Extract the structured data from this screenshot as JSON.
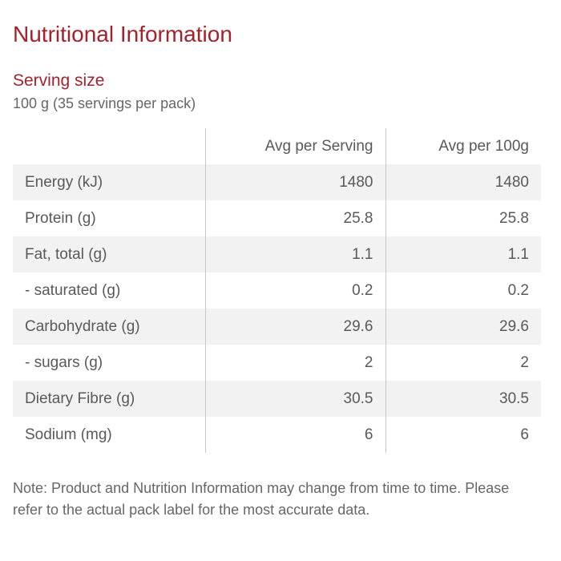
{
  "title": "Nutritional Information",
  "serving": {
    "heading": "Serving size",
    "value": "100 g (35 servings per pack)"
  },
  "table": {
    "headers": [
      "",
      "Avg per Serving",
      "Avg per 100g"
    ],
    "rows": [
      {
        "name": "Energy (kJ)",
        "per_serving": "1480",
        "per_100g": "1480"
      },
      {
        "name": "Protein (g)",
        "per_serving": "25.8",
        "per_100g": "25.8"
      },
      {
        "name": "Fat, total (g)",
        "per_serving": "1.1",
        "per_100g": "1.1"
      },
      {
        "name": "- saturated (g)",
        "per_serving": "0.2",
        "per_100g": "0.2"
      },
      {
        "name": "Carbohydrate (g)",
        "per_serving": "29.6",
        "per_100g": "29.6"
      },
      {
        "name": "- sugars (g)",
        "per_serving": "2",
        "per_100g": "2"
      },
      {
        "name": "Dietary Fibre (g)",
        "per_serving": "30.5",
        "per_100g": "30.5"
      },
      {
        "name": "Sodium (mg)",
        "per_serving": "6",
        "per_100g": "6"
      }
    ]
  },
  "note": "Note: Product and Nutrition Information may change from time to time. Please refer to the actual pack label for the most accurate data.",
  "colors": {
    "accent": "#a3222e",
    "text": "#595959",
    "stripe": "#f2f2f2",
    "divider": "#c8c8c8"
  }
}
